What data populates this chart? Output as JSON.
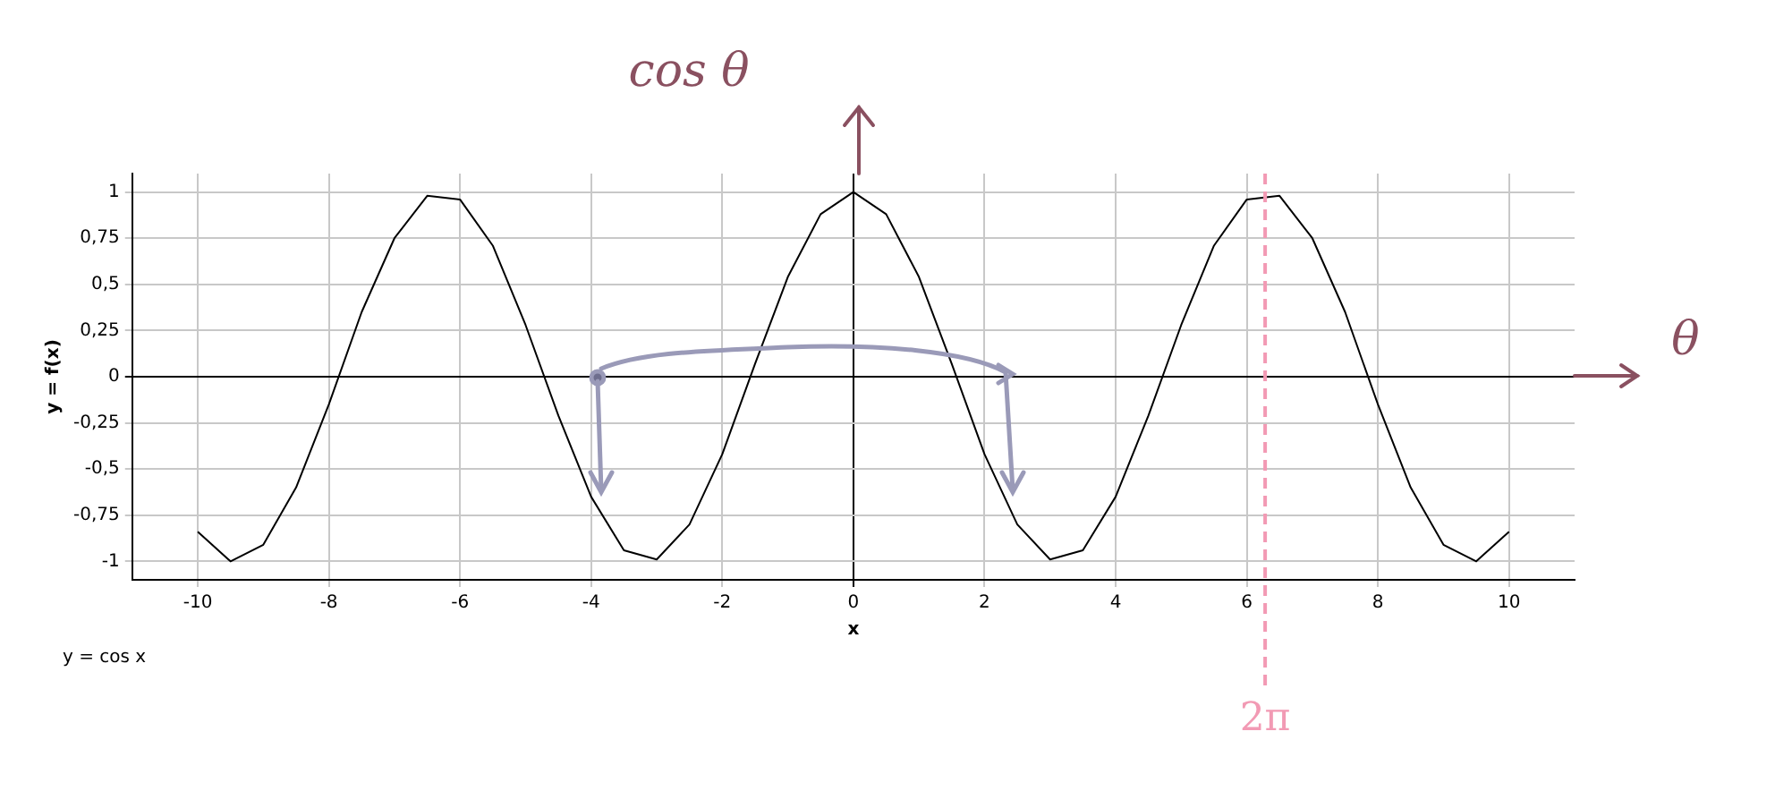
{
  "chart_data": {
    "type": "line",
    "xlabel": "x",
    "ylabel": "y = f(x)",
    "annotations": [
      "cos θ",
      "θ",
      "y = cos x"
    ],
    "x": [
      -10,
      -9.5,
      -9,
      -8.5,
      -8,
      -7.5,
      -7,
      -6.5,
      -6,
      -5.5,
      -5,
      -4.5,
      -4,
      -3.5,
      -3,
      -2.5,
      -2,
      -1.5,
      -1,
      -0.5,
      0,
      0.5,
      1,
      1.5,
      2,
      2.5,
      3,
      3.5,
      4,
      4.5,
      5,
      5.5,
      6,
      6.5,
      7,
      7.5,
      8,
      8.5,
      9,
      9.5,
      10
    ],
    "series": [
      {
        "color": "#000000",
        "values": [
          -0.84,
          -1.0,
          -0.91,
          -0.6,
          -0.15,
          0.35,
          0.75,
          0.98,
          0.96,
          0.71,
          0.28,
          -0.21,
          -0.65,
          -0.94,
          -0.99,
          -0.8,
          -0.42,
          0.07,
          0.54,
          0.88,
          1,
          0.88,
          0.54,
          0.07,
          -0.42,
          -0.8,
          -0.99,
          -0.94,
          -0.65,
          -0.21,
          0.28,
          0.71,
          0.96,
          0.98,
          0.75,
          0.35,
          -0.15,
          -0.6,
          -0.91,
          -1.0,
          -0.84
        ]
      }
    ],
    "xlim": [
      -11,
      11
    ],
    "xticks": [
      -10,
      -8,
      -6,
      -4,
      -2,
      0,
      2,
      4,
      6,
      8,
      10
    ],
    "ylim": [
      -1.1,
      1.1
    ],
    "yticks": [
      -1,
      {
        "value": -0.75,
        "label": "-0,75"
      },
      {
        "value": -0.5,
        "label": "-0,5"
      },
      {
        "value": -0.25,
        "label": "-0,25"
      },
      0,
      {
        "value": 0.25,
        "label": "0,25"
      },
      {
        "value": 0.5,
        "label": "0,5"
      },
      {
        "value": 0.75,
        "label": "0,75"
      },
      1
    ],
    "ref_lines": [
      {
        "axis": "x",
        "value": 6.28,
        "label": "2π",
        "color": "#f29ab4",
        "line_style": "dashed"
      }
    ],
    "grid": true,
    "legend": false,
    "marker": "none",
    "line_style": "solid"
  }
}
